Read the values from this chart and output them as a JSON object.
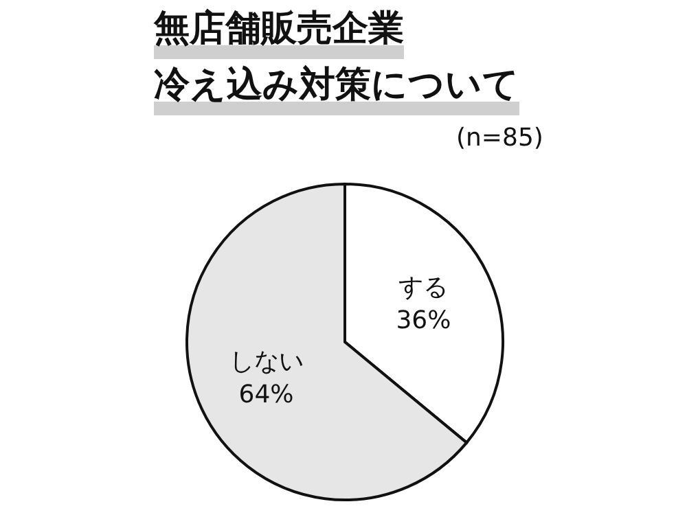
{
  "chart_data": {
    "type": "pie",
    "title": "無店舗販売企業",
    "subtitle": "冷え込み対策について",
    "annotations": [
      "(n=85)"
    ],
    "categories": [
      "する",
      "しない"
    ],
    "values": [
      36,
      64
    ],
    "colors": [
      "#ffffff",
      "#e6e6e6"
    ],
    "value_labels": [
      "36%",
      "64%"
    ]
  }
}
